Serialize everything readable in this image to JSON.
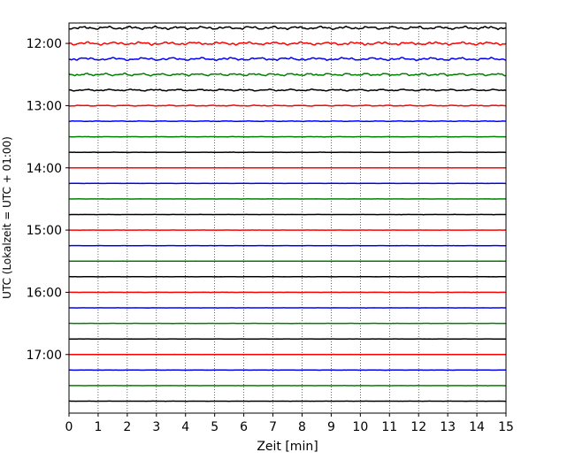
{
  "chart_data": {
    "type": "line",
    "title": "",
    "xlabel": "Zeit  [min]",
    "ylabel": "UTC (Lokalzeit = UTC + 01:00)",
    "xlim": [
      0,
      15
    ],
    "x_ticks": [
      "0",
      "1",
      "2",
      "3",
      "4",
      "5",
      "6",
      "7",
      "8",
      "9",
      "10",
      "11",
      "12",
      "13",
      "14",
      "15"
    ],
    "y_ticks": [
      "12:00",
      "13:00",
      "14:00",
      "15:00",
      "16:00",
      "17:00"
    ],
    "grid": "vertical dotted lines at each minute",
    "trace_interval_minutes": 15,
    "time_range": [
      "11:45",
      "17:45"
    ],
    "colors": [
      "#000000",
      "#ff0000",
      "#0000ff",
      "#008000"
    ],
    "series": [
      {
        "start": "11:45",
        "amplitude": 1.6
      },
      {
        "start": "12:00",
        "amplitude": 1.6
      },
      {
        "start": "12:15",
        "amplitude": 1.5
      },
      {
        "start": "12:30",
        "amplitude": 1.3
      },
      {
        "start": "12:45",
        "amplitude": 0.9
      },
      {
        "start": "13:00",
        "amplitude": 0.5
      },
      {
        "start": "13:15",
        "amplitude": 0.3
      },
      {
        "start": "13:30",
        "amplitude": 0.15
      },
      {
        "start": "13:45",
        "amplitude": 0.12
      },
      {
        "start": "14:00",
        "amplitude": 0.07
      },
      {
        "start": "14:15",
        "amplitude": 0.07
      },
      {
        "start": "14:30",
        "amplitude": 0.07
      },
      {
        "start": "14:45",
        "amplitude": 0.07
      },
      {
        "start": "15:00",
        "amplitude": 0.07
      },
      {
        "start": "15:15",
        "amplitude": 0.07
      },
      {
        "start": "15:30",
        "amplitude": 0.07
      },
      {
        "start": "15:45",
        "amplitude": 0.07
      },
      {
        "start": "16:00",
        "amplitude": 0.07
      },
      {
        "start": "16:15",
        "amplitude": 0.07
      },
      {
        "start": "16:30",
        "amplitude": 0.07
      },
      {
        "start": "16:45",
        "amplitude": 0.07
      },
      {
        "start": "17:00",
        "amplitude": 0.07
      },
      {
        "start": "17:15",
        "amplitude": 0.07
      },
      {
        "start": "17:30",
        "amplitude": 0.07
      },
      {
        "start": "17:45",
        "amplitude": 0.07
      }
    ]
  }
}
